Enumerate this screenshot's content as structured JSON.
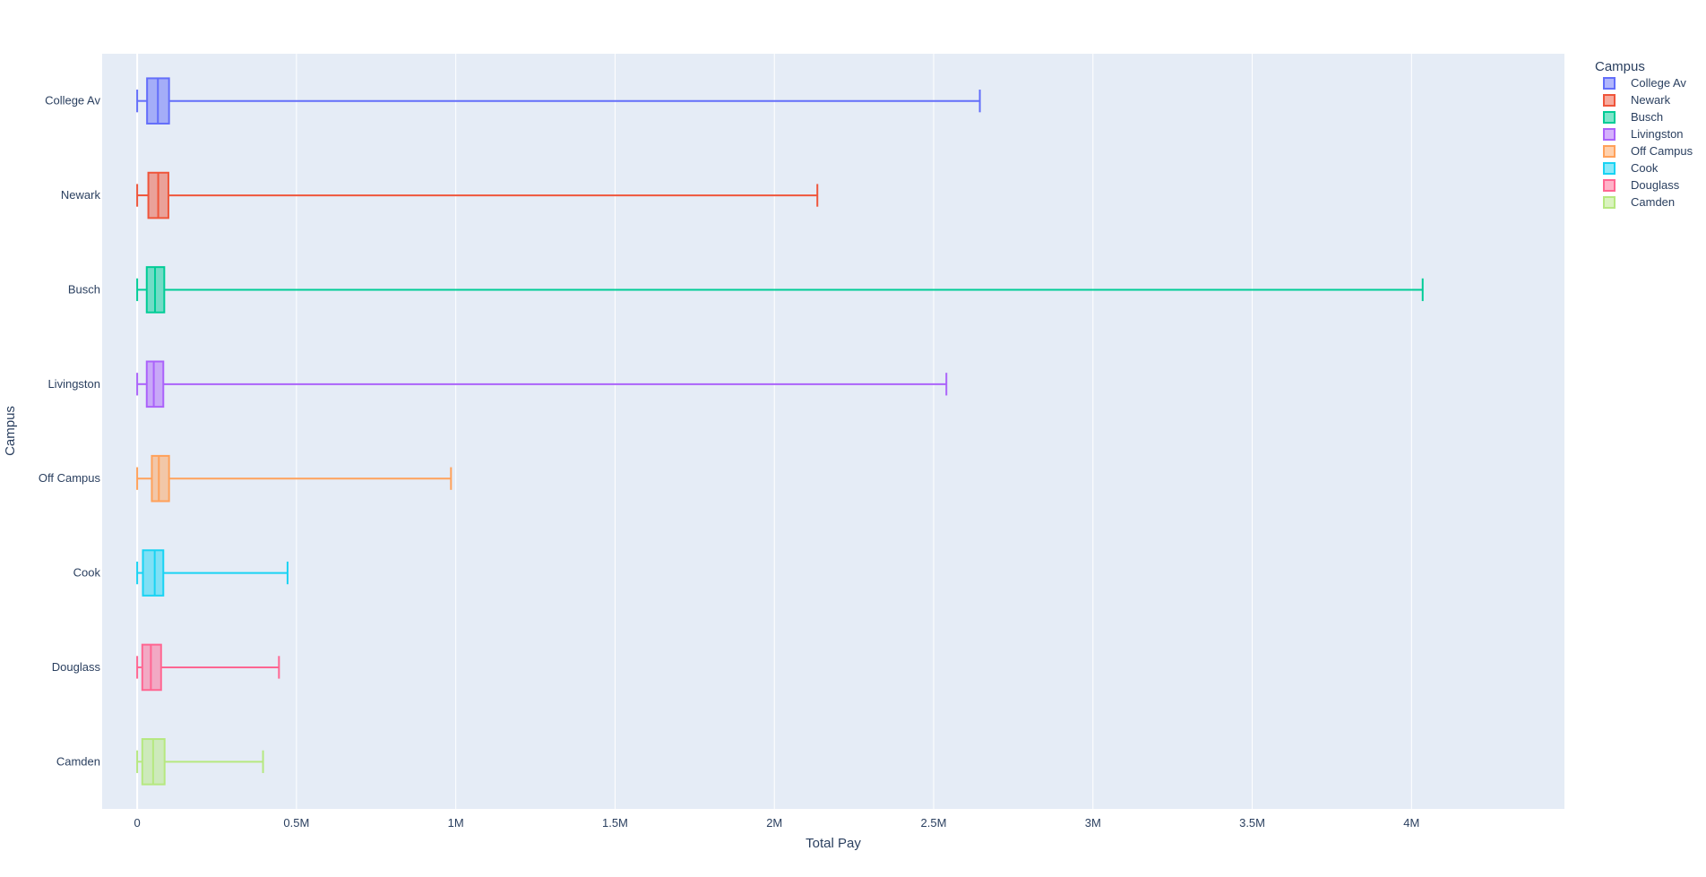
{
  "chart_data": {
    "type": "box",
    "orientation": "horizontal",
    "title": "",
    "xlabel": "Total Pay",
    "ylabel": "Campus",
    "xlim": [
      -110000,
      4480000
    ],
    "x_ticks": [
      0,
      500000,
      1000000,
      1500000,
      2000000,
      2500000,
      3000000,
      3500000,
      4000000
    ],
    "x_tick_labels": [
      "0",
      "0.5M",
      "1M",
      "1.5M",
      "2M",
      "2.5M",
      "3M",
      "3.5M",
      "4M"
    ],
    "grid": true,
    "plot_bgcolor": "#E5ECF6",
    "grid_color": "#ffffff",
    "text_color": "#2a3f5f",
    "legend": {
      "title": "Campus",
      "placement": "top-right-outside"
    },
    "series": [
      {
        "name": "College Av",
        "color": "#636EFA",
        "min": 0,
        "q1": 31000,
        "median": 65000,
        "q3": 100000,
        "max": 2645000
      },
      {
        "name": "Newark",
        "color": "#EF553B",
        "min": 0,
        "q1": 35000,
        "median": 66000,
        "q3": 98000,
        "max": 2135000
      },
      {
        "name": "Busch",
        "color": "#00CC96",
        "min": 0,
        "q1": 30000,
        "median": 56000,
        "q3": 85000,
        "max": 4035000
      },
      {
        "name": "Livingston",
        "color": "#AB63FA",
        "min": 0,
        "q1": 30000,
        "median": 52000,
        "q3": 82000,
        "max": 2540000
      },
      {
        "name": "Off Campus",
        "color": "#FFA15A",
        "min": 0,
        "q1": 46000,
        "median": 68000,
        "q3": 100000,
        "max": 985000
      },
      {
        "name": "Cook",
        "color": "#19D3F3",
        "min": 0,
        "q1": 18000,
        "median": 55000,
        "q3": 82000,
        "max": 472000
      },
      {
        "name": "Douglass",
        "color": "#FF6692",
        "min": 0,
        "q1": 16000,
        "median": 43000,
        "q3": 75000,
        "max": 445000
      },
      {
        "name": "Camden",
        "color": "#B6E880",
        "min": 0,
        "q1": 16000,
        "median": 50000,
        "q3": 86000,
        "max": 395000
      }
    ]
  }
}
